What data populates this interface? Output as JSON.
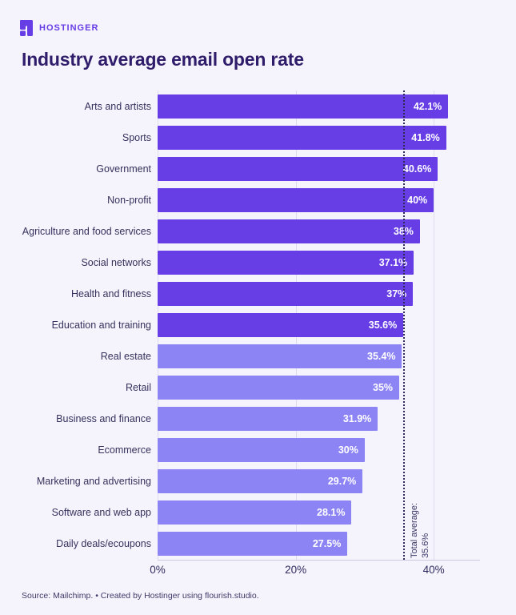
{
  "brand": {
    "wordmark": "HOSTINGER",
    "color": "#673de6"
  },
  "title": "Industry average email open rate",
  "footer": {
    "text": "Source: Mailchimp. • Created by Hostinger using flourish.studio."
  },
  "colors": {
    "background": "#f5f4fc",
    "bar_above_average": "#673de6",
    "bar_below_average": "#8c84f4",
    "title_text": "#2f1c6a",
    "category_text": "#36315c",
    "value_text": "#ffffff",
    "gridline": "#dfdbf0",
    "axis_line": "#cbc7e0",
    "average_line": "#2e2957"
  },
  "chart_data": {
    "type": "bar",
    "orientation": "horizontal",
    "title": "Industry average email open rate",
    "xlabel": "",
    "ylabel": "",
    "xlim": [
      0,
      46.7
    ],
    "grid": "vertical",
    "legend": "none",
    "categories": [
      "Arts and artists",
      "Sports",
      "Government",
      "Non-profit",
      "Agriculture and food services",
      "Social networks",
      "Health and fitness",
      "Education and training",
      "Real estate",
      "Retail",
      "Business and finance",
      "Ecommerce",
      "Marketing and advertising",
      "Software and web app",
      "Daily deals/ecoupons"
    ],
    "values": [
      42.1,
      41.8,
      40.6,
      40,
      38,
      37.1,
      37,
      35.6,
      35.4,
      35,
      31.9,
      30,
      29.7,
      28.1,
      27.5
    ],
    "value_labels": [
      "42.1%",
      "41.8%",
      "40.6%",
      "40%",
      "38%",
      "37.1%",
      "37%",
      "35.6%",
      "35.4%",
      "35%",
      "31.9%",
      "30%",
      "29.7%",
      "28.1%",
      "27.5%"
    ],
    "x_ticks": [
      {
        "value": 0,
        "label": "0%"
      },
      {
        "value": 20,
        "label": "20%"
      },
      {
        "value": 40,
        "label": "40%"
      }
    ],
    "average": {
      "value": 35.6,
      "label_line1": "Total average:",
      "label_line2": "35.6%"
    },
    "color_rule": "bars at or above the total average are dark purple; bars below are light purple"
  }
}
